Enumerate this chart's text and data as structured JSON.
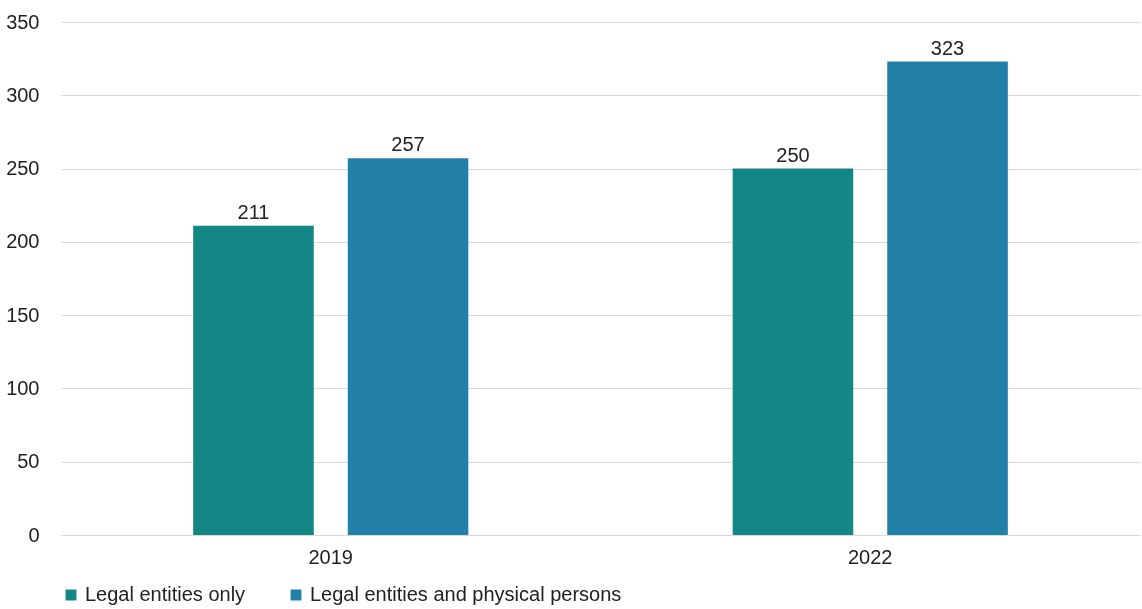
{
  "chart_data": {
    "type": "bar",
    "categories": [
      "2019",
      "2022"
    ],
    "series": [
      {
        "name": "Legal entities only",
        "color": "#138686",
        "values": [
          211,
          250
        ]
      },
      {
        "name": "Legal entities and physical persons",
        "color": "#2180a8",
        "values": [
          257,
          323
        ]
      }
    ],
    "ylim": [
      0,
      350
    ],
    "yticks": [
      0,
      50,
      100,
      150,
      200,
      250,
      300,
      350
    ],
    "grid": "y",
    "legend": "bottom",
    "data_labels": true
  }
}
